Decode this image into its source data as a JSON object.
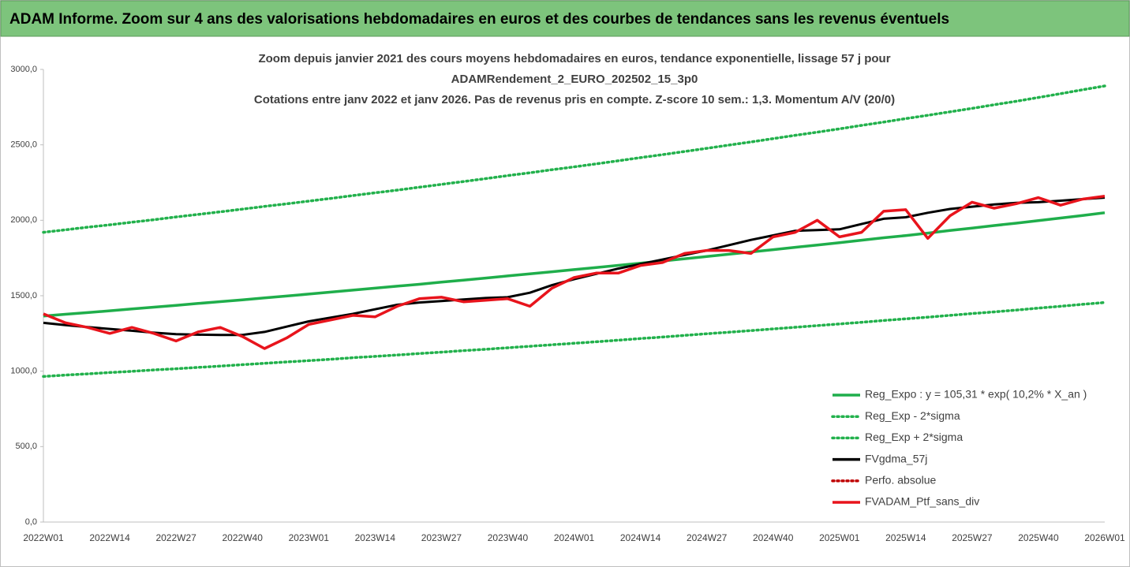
{
  "header": {
    "title": "ADAM Informe. Zoom sur 4 ans des valorisations hebdomadaires en euros et des courbes de tendances sans les revenus éventuels"
  },
  "chart_data": {
    "type": "line",
    "subtitle_lines": [
      "Zoom depuis janvier 2021 des cours moyens hebdomadaires  en euros, tendance exponentielle, lissage 57 j pour",
      "ADAMRendement_2_EURO_202502_15_3p0",
      "Cotations entre janv 2022 et janv 2026. Pas de revenus pris en compte. Z-score 10 sem.: 1,3. Momentum A/V (20/0)"
    ],
    "categories": [
      "2022W01",
      null,
      null,
      "2022W14",
      null,
      null,
      "2022W27",
      null,
      null,
      "2022W40",
      null,
      null,
      "2023W01",
      null,
      null,
      "2023W14",
      null,
      null,
      "2023W27",
      null,
      null,
      "2023W40",
      null,
      null,
      "2024W01",
      null,
      null,
      "2024W14",
      null,
      null,
      "2024W27",
      null,
      null,
      "2024W40",
      null,
      null,
      "2025W01",
      null,
      null,
      "2025W14",
      null,
      null,
      "2025W27",
      null,
      null,
      "2025W40",
      null,
      null,
      "2026W01"
    ],
    "ylim": [
      0,
      3000
    ],
    "yticks": [
      {
        "value": 0,
        "label": "0,0"
      },
      {
        "value": 500,
        "label": "500,0"
      },
      {
        "value": 1000,
        "label": "1000,0"
      },
      {
        "value": 1500,
        "label": "1500,0"
      },
      {
        "value": 2000,
        "label": "2000,0"
      },
      {
        "value": 2500,
        "label": "2500,0"
      },
      {
        "value": 3000,
        "label": "3000,0"
      }
    ],
    "grid": false,
    "legend": "bottom-right",
    "series": [
      {
        "name": "Reg_Expo : y = 105,31 * exp( 10,2% *  X_an )",
        "color": "#1fae4b",
        "style": "solid",
        "values": [
          1365,
          1377,
          1388,
          1400,
          1412,
          1424,
          1436,
          1449,
          1461,
          1473,
          1486,
          1498,
          1511,
          1524,
          1537,
          1550,
          1563,
          1576,
          1590,
          1603,
          1617,
          1631,
          1645,
          1659,
          1673,
          1687,
          1701,
          1716,
          1730,
          1745,
          1760,
          1775,
          1790,
          1805,
          1821,
          1836,
          1852,
          1868,
          1884,
          1899,
          1915,
          1932,
          1948,
          1965,
          1981,
          1998,
          2015,
          2032,
          2050
        ]
      },
      {
        "name": "Reg_Exp - 2*sigma",
        "color": "#22b14c",
        "style": "dotted",
        "values": [
          965,
          974,
          982,
          991,
          999,
          1008,
          1016,
          1025,
          1034,
          1043,
          1052,
          1061,
          1070,
          1079,
          1089,
          1098,
          1107,
          1117,
          1126,
          1136,
          1145,
          1155,
          1165,
          1175,
          1185,
          1195,
          1205,
          1216,
          1226,
          1237,
          1248,
          1258,
          1269,
          1280,
          1291,
          1302,
          1313,
          1324,
          1336,
          1347,
          1358,
          1370,
          1382,
          1393,
          1405,
          1418,
          1430,
          1443,
          1455
        ]
      },
      {
        "name": "Reg_Exp + 2*sigma",
        "color": "#22b14c",
        "style": "dotted",
        "values": [
          1920,
          1937,
          1954,
          1970,
          1987,
          2004,
          2022,
          2039,
          2056,
          2074,
          2092,
          2109,
          2127,
          2145,
          2164,
          2182,
          2200,
          2219,
          2238,
          2257,
          2276,
          2296,
          2315,
          2335,
          2354,
          2374,
          2394,
          2415,
          2435,
          2456,
          2477,
          2498,
          2519,
          2541,
          2563,
          2584,
          2606,
          2629,
          2651,
          2674,
          2696,
          2719,
          2742,
          2766,
          2789,
          2814,
          2839,
          2865,
          2890
        ]
      },
      {
        "name": "FVgdma_57j",
        "color": "#000000",
        "style": "solid",
        "values": [
          1320,
          1305,
          1292,
          1280,
          1268,
          1255,
          1245,
          1242,
          1240,
          1240,
          1260,
          1295,
          1330,
          1355,
          1380,
          1410,
          1440,
          1455,
          1465,
          1475,
          1485,
          1490,
          1520,
          1570,
          1610,
          1645,
          1680,
          1710,
          1740,
          1770,
          1800,
          1835,
          1870,
          1900,
          1930,
          1935,
          1940,
          1975,
          2010,
          2020,
          2050,
          2075,
          2090,
          2105,
          2115,
          2120,
          2130,
          2140,
          2150
        ]
      },
      {
        "name": "Perfo. absolue",
        "color": "#c00000",
        "style": "dotted",
        "values": [
          null,
          null,
          null,
          null,
          null,
          null,
          null,
          null,
          null,
          null,
          null,
          null,
          null,
          null,
          null,
          null,
          null,
          null,
          null,
          null,
          null,
          null,
          null,
          null,
          null,
          null,
          null,
          null,
          null,
          null,
          null,
          null,
          null,
          null,
          null,
          null,
          null,
          null,
          null,
          null,
          null,
          null,
          null,
          null,
          null,
          null,
          null,
          null,
          null
        ]
      },
      {
        "name": "FVADAM_Ptf_sans_div",
        "color": "#e8141c",
        "style": "solid",
        "values": [
          1380,
          1320,
          1290,
          1250,
          1290,
          1250,
          1200,
          1260,
          1290,
          1230,
          1150,
          1220,
          1310,
          1340,
          1370,
          1360,
          1430,
          1480,
          1490,
          1460,
          1470,
          1480,
          1430,
          1550,
          1620,
          1650,
          1650,
          1700,
          1720,
          1780,
          1800,
          1800,
          1780,
          1890,
          1920,
          2000,
          1890,
          1920,
          2060,
          2070,
          1880,
          2030,
          2120,
          2080,
          2110,
          2150,
          2100,
          2140,
          2160
        ]
      }
    ]
  }
}
